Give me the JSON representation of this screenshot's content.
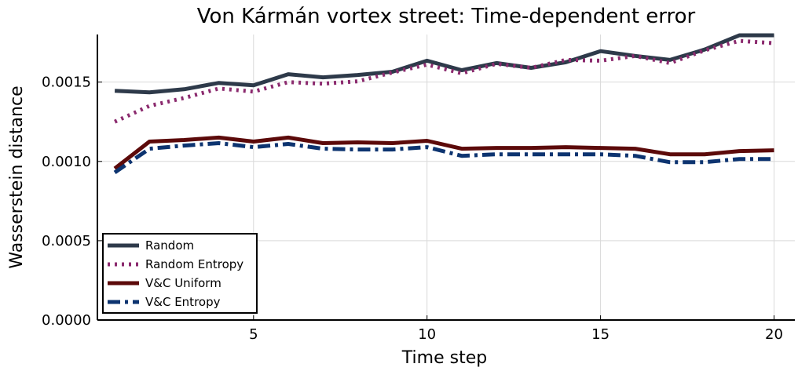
{
  "chart_data": {
    "type": "line",
    "title": "Von Kármán vortex street: Time-dependent error",
    "xlabel": "Time step",
    "ylabel": "Wasserstein distance",
    "xlim": [
      0.5,
      20.6
    ],
    "ylim": [
      0,
      0.0018
    ],
    "xticks": [
      5,
      10,
      15,
      20
    ],
    "xtick_labels": [
      "5",
      "10",
      "15",
      "20"
    ],
    "yticks": [
      0,
      0.0005,
      0.001,
      0.0015
    ],
    "ytick_labels": [
      "0.0000",
      "0.0005",
      "0.0010",
      "0.0015"
    ],
    "grid": true,
    "legend_position": "bottom-left",
    "x": [
      1,
      2,
      3,
      4,
      5,
      6,
      7,
      8,
      9,
      10,
      11,
      12,
      13,
      14,
      15,
      16,
      17,
      18,
      19,
      20
    ],
    "series": [
      {
        "name": "Random",
        "color": "#2e3a4a",
        "style": "solid",
        "values": [
          0.001445,
          0.001435,
          0.001455,
          0.001495,
          0.00148,
          0.00155,
          0.00153,
          0.001545,
          0.001565,
          0.001635,
          0.001575,
          0.00162,
          0.00159,
          0.001625,
          0.001695,
          0.001665,
          0.00164,
          0.001705,
          0.001795,
          0.001795
        ]
      },
      {
        "name": "Random Entropy",
        "color": "#8b2a6e",
        "style": "dotted",
        "values": [
          0.00125,
          0.00135,
          0.0014,
          0.00146,
          0.00144,
          0.0015,
          0.00149,
          0.001505,
          0.00156,
          0.00161,
          0.001555,
          0.001615,
          0.00159,
          0.00164,
          0.001635,
          0.001665,
          0.00162,
          0.0017,
          0.00176,
          0.001745
        ]
      },
      {
        "name": "V&C Uniform",
        "color": "#5c0a0a",
        "style": "solid",
        "values": [
          0.000955,
          0.001125,
          0.001135,
          0.00115,
          0.001125,
          0.00115,
          0.001115,
          0.00112,
          0.001115,
          0.00113,
          0.00108,
          0.001085,
          0.001085,
          0.00109,
          0.001085,
          0.00108,
          0.001045,
          0.001045,
          0.001065,
          0.00107
        ]
      },
      {
        "name": "V&C Entropy",
        "color": "#0d3470",
        "style": "dashdot",
        "values": [
          0.00093,
          0.00108,
          0.0011,
          0.001115,
          0.00109,
          0.00111,
          0.00108,
          0.001075,
          0.001075,
          0.00109,
          0.001035,
          0.001045,
          0.001045,
          0.001045,
          0.001045,
          0.001035,
          0.000995,
          0.000995,
          0.001015,
          0.001015
        ]
      }
    ]
  }
}
